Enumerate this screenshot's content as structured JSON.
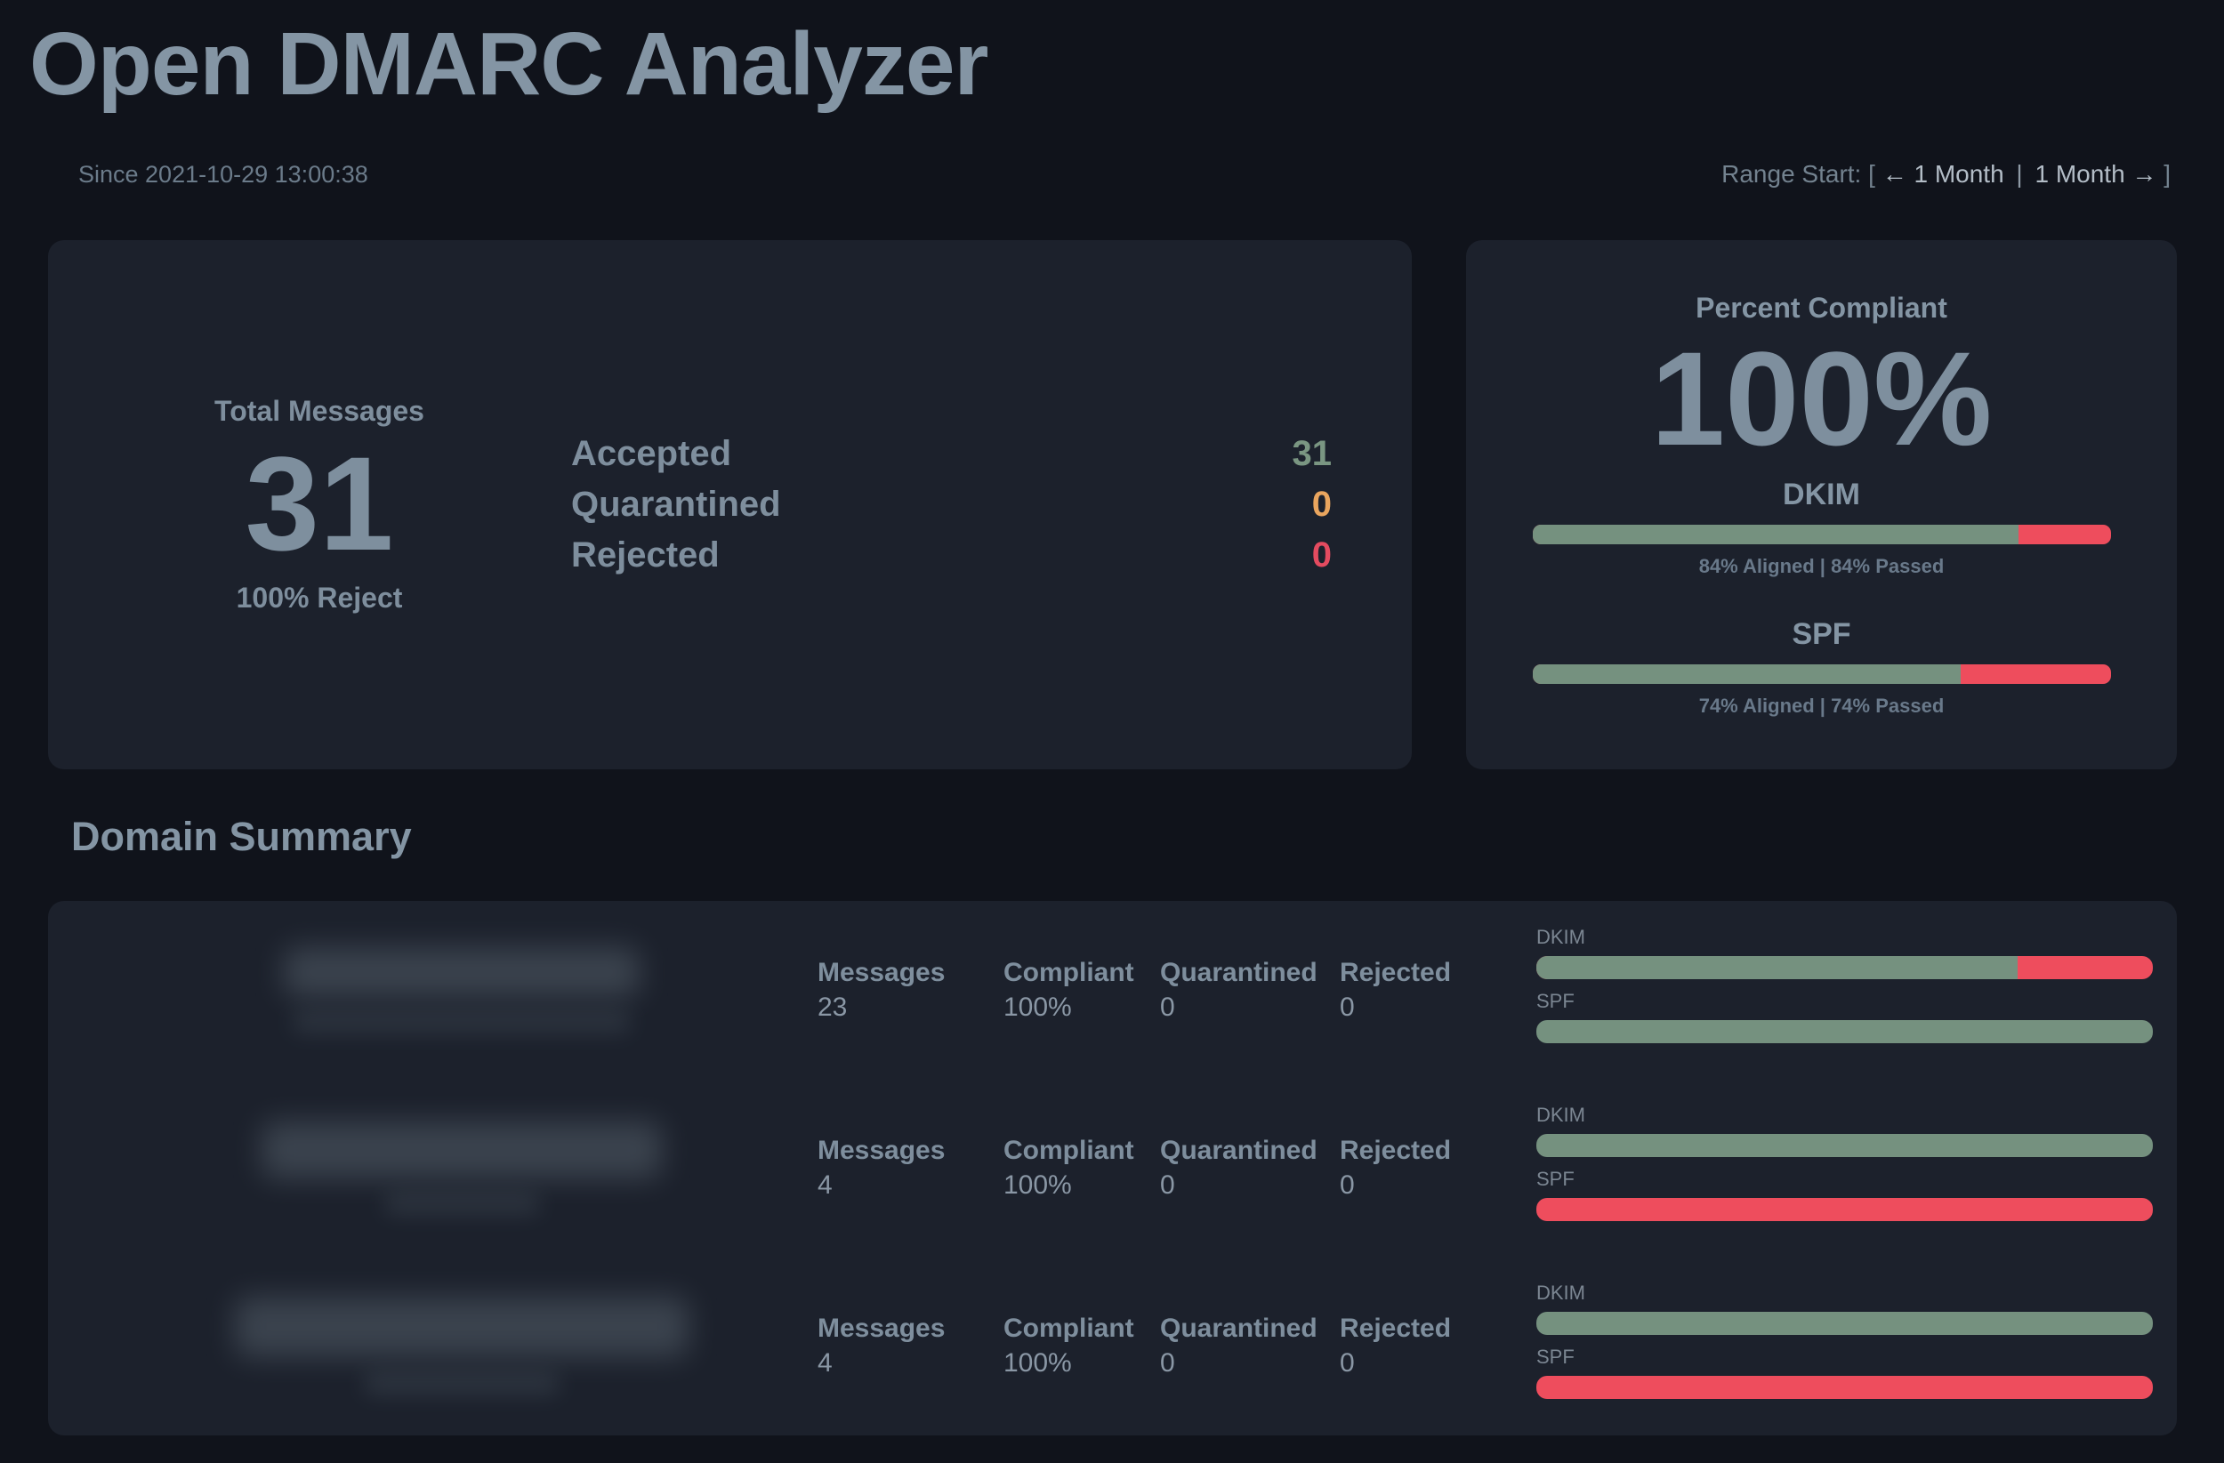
{
  "colors": {
    "bar_green": "#75917f",
    "bar_red": "#ee4d5d",
    "accepted_green": "#7a9682",
    "quarantined_orange": "#e9a55e",
    "rejected_red": "#e44b60"
  },
  "header": {
    "title": "Open DMARC Analyzer",
    "since": "Since 2021-10-29 13:00:38",
    "range": {
      "prefix": "Range Start: [",
      "prev": "← 1 Month",
      "separator": "|",
      "next": "1 Month →",
      "suffix": "]"
    }
  },
  "totals": {
    "label": "Total Messages",
    "value": "31",
    "policy": "100% Reject",
    "breakdown": [
      {
        "label": "Accepted",
        "value": "31"
      },
      {
        "label": "Quarantined",
        "value": "0"
      },
      {
        "label": "Rejected",
        "value": "0"
      }
    ]
  },
  "compliance": {
    "title": "Percent Compliant",
    "value": "100%",
    "dkim": {
      "label": "DKIM",
      "aligned_percent": 84,
      "caption": "84% Aligned | 84% Passed"
    },
    "spf": {
      "label": "SPF",
      "aligned_percent": 74,
      "caption": "74% Aligned | 74% Passed"
    }
  },
  "domain_summary": {
    "title": "Domain Summary",
    "stat_labels": {
      "messages": "Messages",
      "compliant": "Compliant",
      "quarantined": "Quarantined",
      "rejected": "Rejected"
    },
    "bar_labels": {
      "dkim": "DKIM",
      "spf": "SPF"
    },
    "rows": [
      {
        "domain_redacted": true,
        "messages": "23",
        "compliant": "100%",
        "quarantined": "0",
        "rejected": "0",
        "dkim_percent": 78,
        "spf_percent": 100
      },
      {
        "domain_redacted": true,
        "messages": "4",
        "compliant": "100%",
        "quarantined": "0",
        "rejected": "0",
        "dkim_percent": 100,
        "spf_percent": 0
      },
      {
        "domain_redacted": true,
        "messages": "4",
        "compliant": "100%",
        "quarantined": "0",
        "rejected": "0",
        "dkim_percent": 100,
        "spf_percent": 0
      }
    ]
  }
}
